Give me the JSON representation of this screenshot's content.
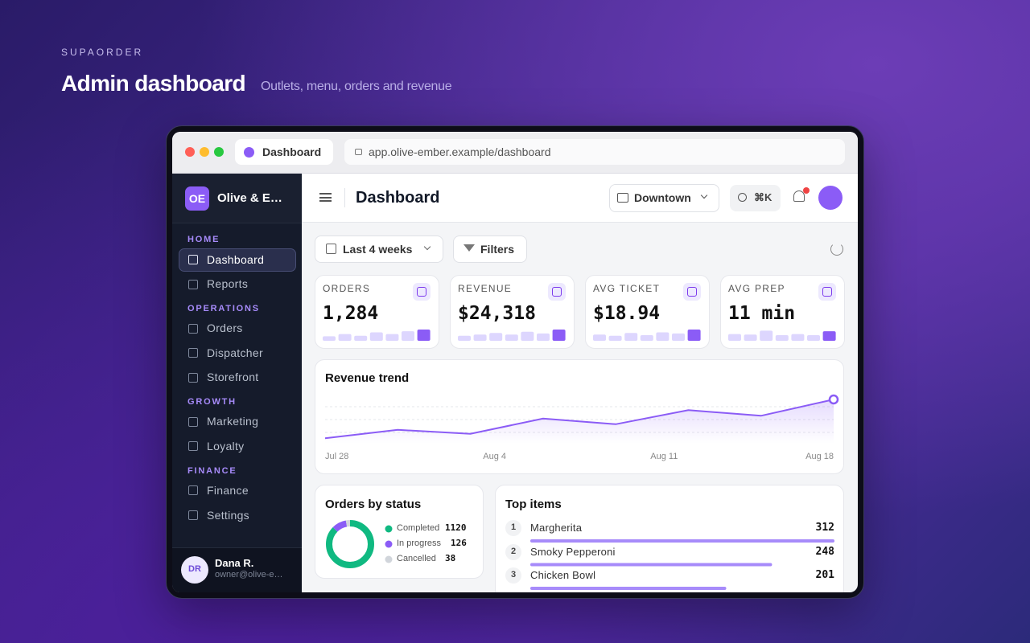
{
  "brand": "SUPAORDER",
  "title": "Admin dashboard",
  "subtitle": "Outlets, menu, orders and revenue",
  "browser": {
    "tab": "Dashboard",
    "url": "app.olive-ember.example/dashboard"
  },
  "sidebar": {
    "logo": "OE",
    "org": "Olive & E…",
    "sections": [
      {
        "heading": "HOME",
        "items": [
          "Dashboard",
          "Reports"
        ]
      },
      {
        "heading": "OPERATIONS",
        "items": [
          "Orders",
          "Dispatcher",
          "Storefront"
        ]
      },
      {
        "heading": "GROWTH",
        "items": [
          "Marketing",
          "Loyalty"
        ]
      },
      {
        "heading": "FINANCE",
        "items": [
          "Finance",
          "Settings"
        ]
      }
    ],
    "user": {
      "initials": "DR",
      "name": "Dana R.",
      "email": "owner@olive-e…"
    }
  },
  "topbar": {
    "title": "Dashboard",
    "outlet": "Downtown",
    "search": "⌘K"
  },
  "filters": {
    "range": "Last 4 weeks",
    "filters": "Filters"
  },
  "kpis": [
    {
      "label": "ORDERS",
      "value": "1,284",
      "spark": [
        40,
        60,
        45,
        75,
        60,
        85,
        100
      ]
    },
    {
      "label": "REVENUE",
      "value": "$24,318",
      "spark": [
        45,
        55,
        70,
        55,
        80,
        65,
        100
      ]
    },
    {
      "label": "AVG TICKET",
      "value": "$18.94",
      "spark": [
        55,
        45,
        70,
        50,
        75,
        65,
        100
      ]
    },
    {
      "label": "AVG PREP",
      "value": "11 min",
      "spark": [
        60,
        55,
        90,
        50,
        60,
        50,
        85
      ]
    }
  ],
  "revenue_trend": {
    "title": "Revenue trend",
    "x_labels": [
      "Jul 28",
      "Aug 4",
      "Aug 11",
      "Aug 18"
    ],
    "values": [
      21,
      36,
      29,
      56,
      46,
      71,
      61,
      90
    ],
    "ylim": [
      0,
      100
    ],
    "color": "#8b5cf6"
  },
  "orders_by_status": {
    "title": "Orders by status",
    "items": [
      {
        "name": "Completed",
        "value": 1120,
        "color": "#10b981"
      },
      {
        "name": "In progress",
        "value": 126,
        "color": "#8b5cf6"
      },
      {
        "name": "Cancelled",
        "value": 38,
        "color": "#d1d5db"
      }
    ]
  },
  "top_items": {
    "title": "Top items",
    "color": "#a78bfa",
    "items": [
      {
        "rank": 1,
        "name": "Margherita",
        "value": 312
      },
      {
        "rank": 2,
        "name": "Smoky Pepperoni",
        "value": 248
      },
      {
        "rank": 3,
        "name": "Chicken Bowl",
        "value": 201
      }
    ]
  }
}
